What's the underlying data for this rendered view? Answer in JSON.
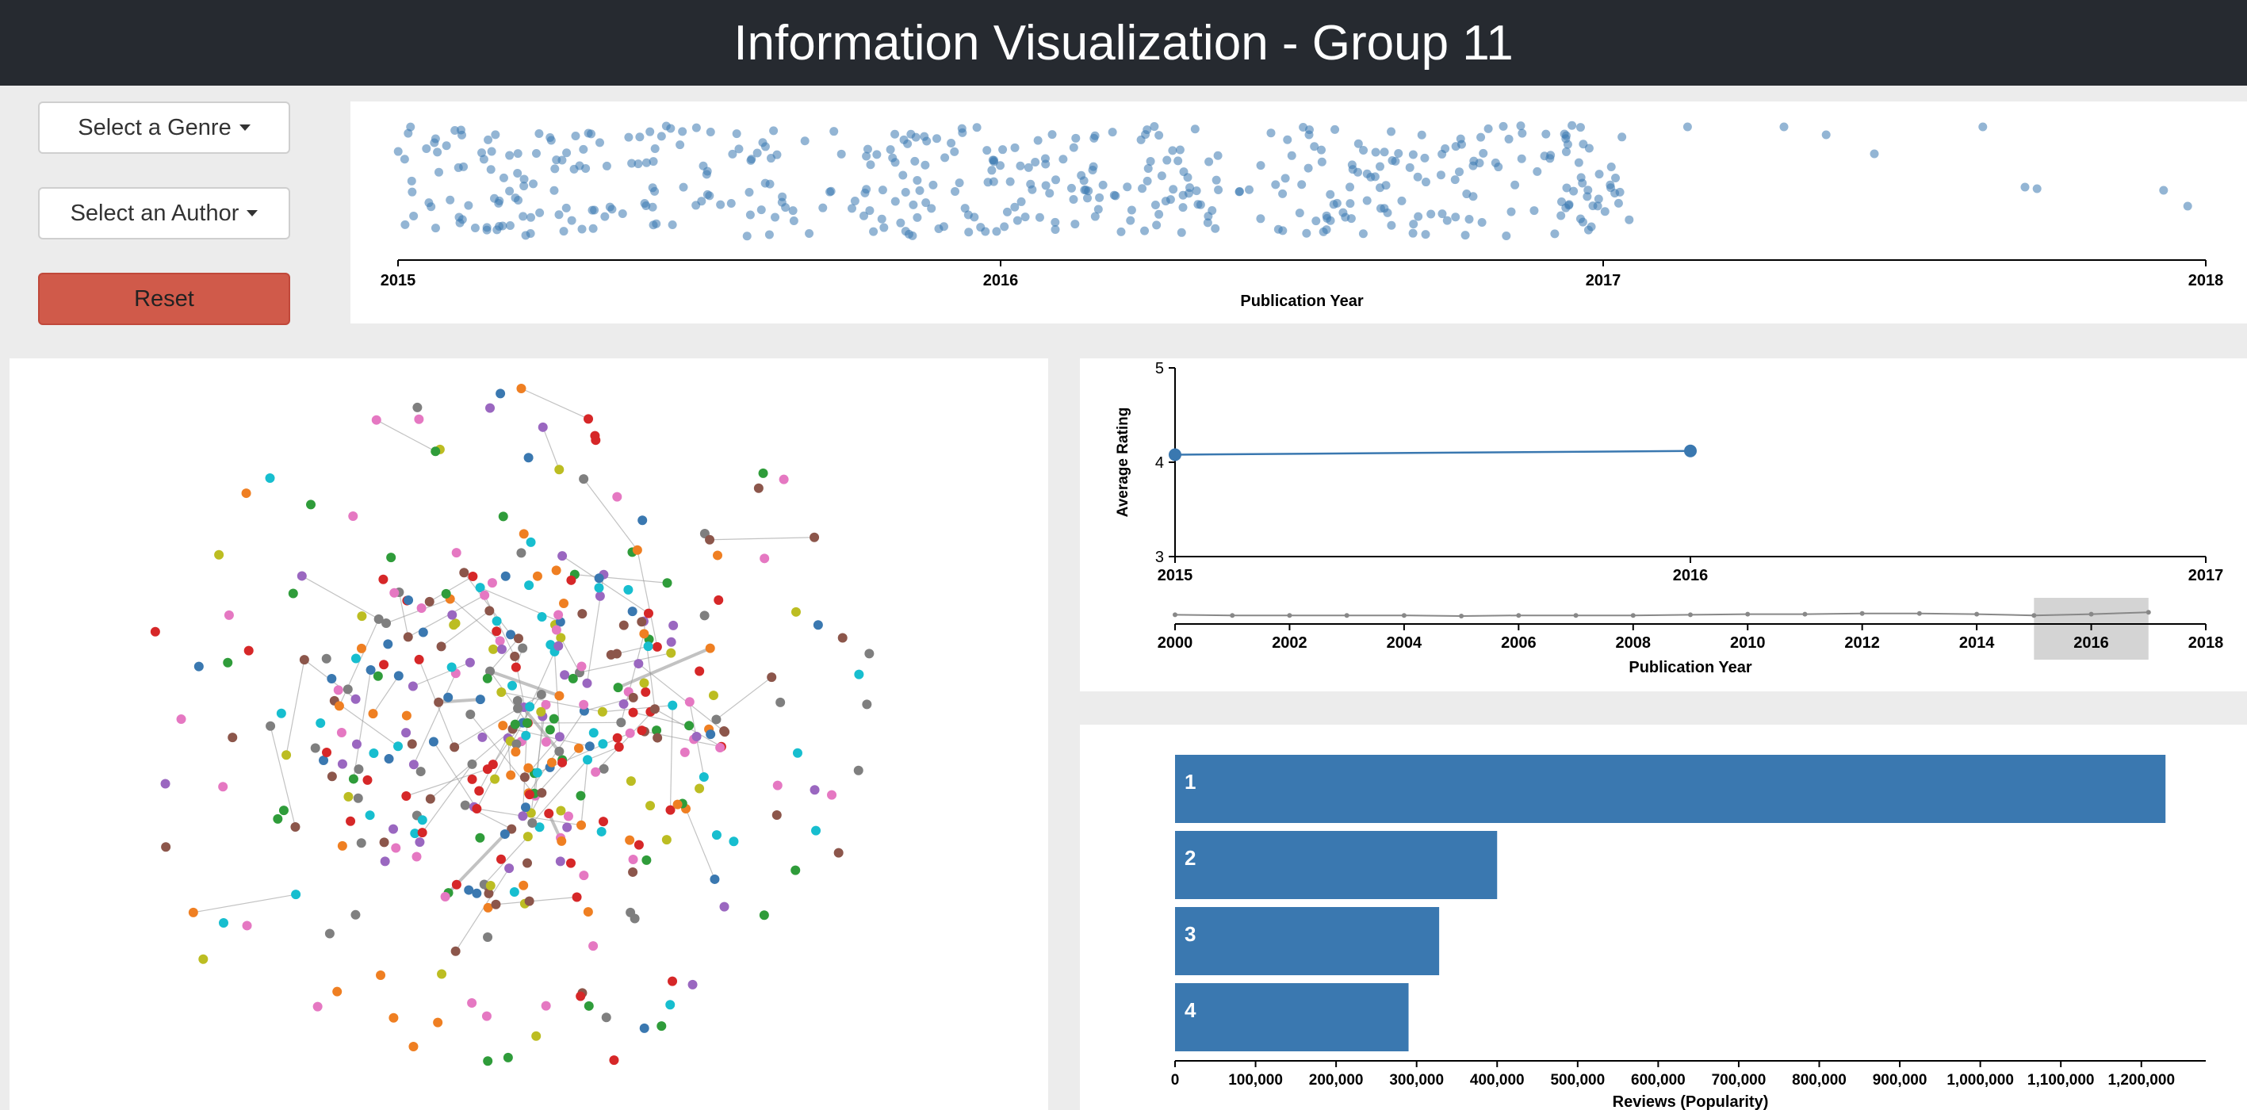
{
  "header": {
    "title": "Information Visualization - Group 11"
  },
  "controls": {
    "genre_label": "Select a Genre",
    "author_label": "Select an Author",
    "reset_label": "Reset"
  },
  "colors": {
    "accent": "#3a78b0",
    "reset": "#d05a4a",
    "header_bg": "#262a30",
    "brush": "#d4d4d4"
  },
  "chart_data": [
    {
      "type": "scatter",
      "name": "publication-timeline",
      "xlabel": "Publication Year",
      "xlim": [
        2015,
        2018
      ],
      "x_ticks": [
        "2015",
        "2016",
        "2017",
        "2018"
      ],
      "note_points": "approx. 460 points dense between 2015 and 2017 with random vertical jitter; sparse after 2017",
      "sparse_x": [
        2017.14,
        2017.3,
        2017.37,
        2017.45,
        2017.63,
        2017.7,
        2017.72,
        2017.97,
        2017.93
      ]
    },
    {
      "type": "line",
      "name": "average-rating",
      "ylabel": "Average Rating",
      "ylim": [
        3,
        5
      ],
      "y_ticks": [
        "3",
        "4",
        "5"
      ],
      "xlim": [
        2015,
        2017
      ],
      "x_ticks": [
        "2015",
        "2016",
        "2017"
      ],
      "x": [
        2015,
        2016
      ],
      "y": [
        4.08,
        4.12
      ]
    },
    {
      "type": "line",
      "name": "rating-context",
      "xlabel": "Publication Year",
      "xlim": [
        2000,
        2018
      ],
      "x_ticks": [
        "2000",
        "2002",
        "2004",
        "2006",
        "2008",
        "2010",
        "2012",
        "2014",
        "2016",
        "2018"
      ],
      "x": [
        2000,
        2001,
        2002,
        2003,
        2004,
        2005,
        2006,
        2007,
        2008,
        2009,
        2010,
        2011,
        2012,
        2013,
        2014,
        2015,
        2016,
        2017
      ],
      "y": [
        4.0,
        3.99,
        3.99,
        3.99,
        3.99,
        3.98,
        3.99,
        3.99,
        3.99,
        4.0,
        4.01,
        4.01,
        4.02,
        4.02,
        4.01,
        3.99,
        4.01,
        4.04
      ],
      "brush": [
        2015,
        2017
      ]
    },
    {
      "type": "bar",
      "name": "reviews-popularity",
      "xlabel": "Reviews (Popularity)",
      "categories": [
        "1",
        "2",
        "3",
        "4"
      ],
      "values": [
        1230000,
        400000,
        328000,
        290000
      ],
      "xlim": [
        0,
        1280000
      ],
      "x_ticks": [
        "0",
        "100,000",
        "200,000",
        "300,000",
        "400,000",
        "500,000",
        "600,000",
        "700,000",
        "800,000",
        "900,000",
        "1,000,000",
        "1,100,000",
        "1,200,000"
      ]
    },
    {
      "type": "network",
      "name": "author-network",
      "palette": [
        "#ef7f22",
        "#3a78b0",
        "#2f9c3a",
        "#d62728",
        "#9a67c0",
        "#e578c2",
        "#8c564b",
        "#7f7f7f",
        "#bcbd22",
        "#17becf"
      ]
    }
  ]
}
